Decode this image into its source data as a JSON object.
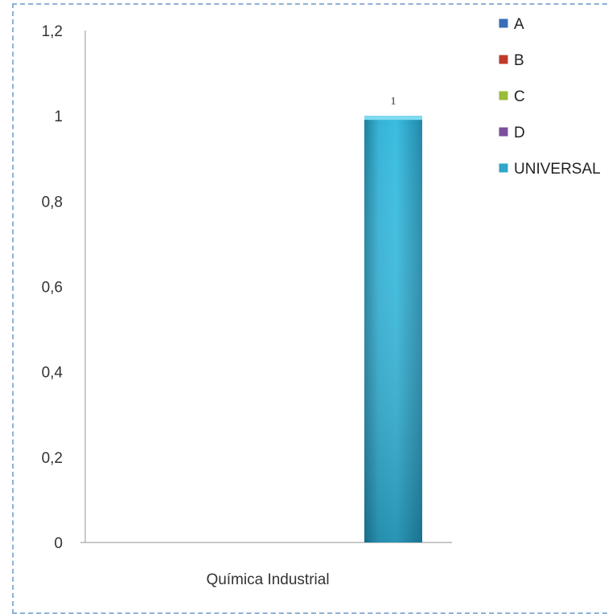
{
  "chart_data": {
    "type": "bar",
    "categories": [
      "Química Industrial"
    ],
    "series": [
      {
        "name": "A",
        "values": [
          0
        ],
        "color": "#3a6db5"
      },
      {
        "name": "B",
        "values": [
          0
        ],
        "color": "#c0392b"
      },
      {
        "name": "C",
        "values": [
          0
        ],
        "color": "#9bbb3a"
      },
      {
        "name": "D",
        "values": [
          0
        ],
        "color": "#7a4f9c"
      },
      {
        "name": "UNIVERSAL",
        "values": [
          1
        ],
        "color": "#2fa6c8"
      }
    ],
    "data_labels": [
      "",
      "",
      "",
      "",
      "1"
    ],
    "y_ticks": [
      "0",
      "0,2",
      "0,4",
      "0,6",
      "0,8",
      "1",
      "1,2"
    ],
    "ylim": [
      0,
      1.2
    ],
    "grid": false,
    "legend_position": "top-right"
  }
}
